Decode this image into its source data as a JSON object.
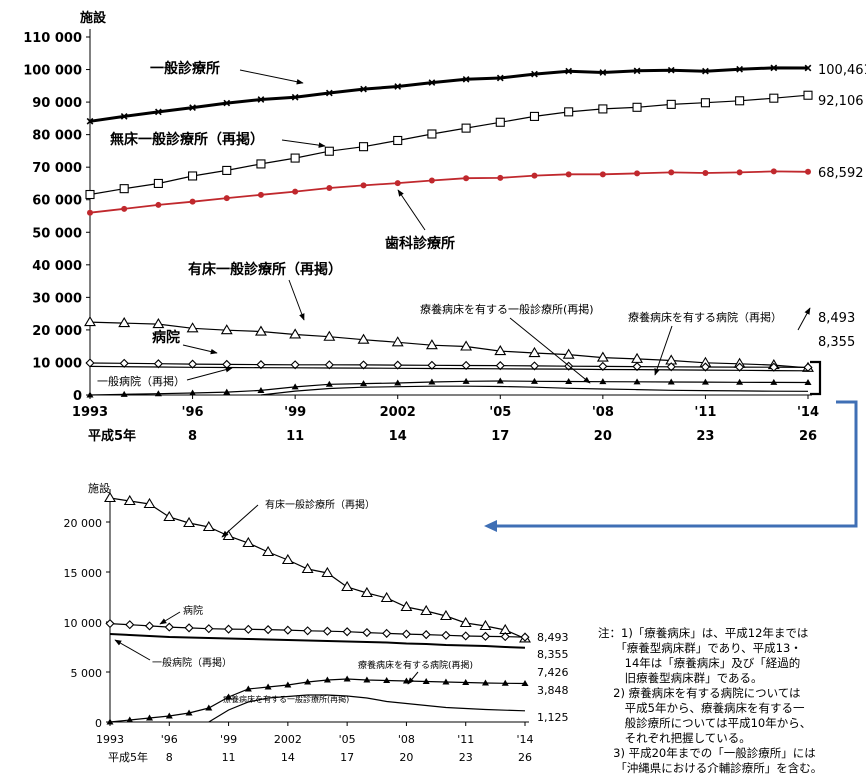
{
  "chart_data": [
    {
      "type": "line",
      "ylabel": "施設",
      "ylim": [
        0,
        110000
      ],
      "yticks": [
        "110 000",
        "100 000",
        "90 000",
        "80 000",
        "70 000",
        "60 000",
        "50 000",
        "40 000",
        "30 000",
        "20 000",
        "10 000",
        "0"
      ],
      "x": [
        1993,
        1994,
        1995,
        1996,
        1997,
        1998,
        1999,
        2000,
        2001,
        2002,
        2003,
        2004,
        2005,
        2006,
        2007,
        2008,
        2009,
        2010,
        2011,
        2012,
        2013,
        2014
      ],
      "xtick_labels": [
        "1993",
        "'96",
        "'99",
        "2002",
        "'05",
        "'08",
        "'11",
        "'14"
      ],
      "xtick_sub_labels": [
        "平成5年",
        "8",
        "11",
        "14",
        "17",
        "20",
        "23",
        "26"
      ],
      "series": [
        {
          "name": "一般診療所",
          "marker": "x",
          "color": "#000000",
          "end_label": "100,461",
          "values": [
            84100,
            85600,
            87000,
            88300,
            89700,
            90800,
            91500,
            92800,
            94000,
            94800,
            96000,
            97000,
            97400,
            98600,
            99500,
            99100,
            99600,
            99800,
            99500,
            100100,
            100500,
            100461
          ]
        },
        {
          "name": "無床一般診療所（再掲）",
          "marker": "square",
          "color": "#000000",
          "end_label": "92,106",
          "values": [
            61600,
            63400,
            65000,
            67300,
            69000,
            71000,
            72800,
            74900,
            76300,
            78200,
            80200,
            82000,
            83800,
            85600,
            87000,
            87900,
            88400,
            89300,
            89800,
            90400,
            91200,
            92106
          ]
        },
        {
          "name": "歯科診療所",
          "marker": "dot",
          "color": "#c0282d",
          "end_label": "68,592",
          "values": [
            56000,
            57200,
            58400,
            59400,
            60500,
            61500,
            62500,
            63600,
            64400,
            65100,
            65900,
            66600,
            66700,
            67400,
            67800,
            67800,
            68100,
            68400,
            68200,
            68400,
            68700,
            68592
          ]
        },
        {
          "name": "有床一般診療所（再掲）",
          "marker": "triangle",
          "color": "#000000",
          "values": [
            22400,
            22100,
            21800,
            20500,
            19900,
            19500,
            18600,
            17900,
            17000,
            16200,
            15300,
            14900,
            13500,
            12900,
            12400,
            11500,
            11100,
            10600,
            9900,
            9600,
            9200,
            8355
          ]
        },
        {
          "name": "病院",
          "marker": "diamond",
          "color": "#000000",
          "end_label": "8,493",
          "values": [
            9844,
            9731,
            9606,
            9490,
            9413,
            9333,
            9286,
            9266,
            9239,
            9187,
            9122,
            9077,
            9026,
            8943,
            8862,
            8794,
            8739,
            8670,
            8605,
            8565,
            8540,
            8493
          ]
        },
        {
          "name": "一般病院（再掲）",
          "marker": "none",
          "color": "#000000",
          "values": [
            8800,
            8700,
            8600,
            8500,
            8450,
            8400,
            8350,
            8300,
            8250,
            8200,
            8150,
            8100,
            8050,
            8000,
            7950,
            7850,
            7800,
            7700,
            7650,
            7600,
            7500,
            7426
          ]
        },
        {
          "name": "療養病床を有する病院（再掲）",
          "marker": "triangle-filled",
          "color": "#000000",
          "values": [
            0,
            200,
            400,
            600,
            900,
            1400,
            2500,
            3300,
            3500,
            3700,
            4000,
            4200,
            4300,
            4200,
            4150,
            4100,
            4050,
            4000,
            3950,
            3900,
            3870,
            3848
          ]
        },
        {
          "name": "療養病床を有する一般診療所(再掲)",
          "marker": "none",
          "color": "#000000",
          "values": [
            null,
            null,
            null,
            null,
            null,
            0,
            1200,
            2000,
            2400,
            2550,
            2700,
            2700,
            2600,
            2400,
            2050,
            1850,
            1650,
            1450,
            1350,
            1250,
            1180,
            1125
          ]
        }
      ],
      "annotations": {
        "ippan": "一般診療所",
        "mushou": "無床一般診療所（再掲）",
        "shika": "歯科診療所",
        "yushou": "有床一般診療所（再掲）",
        "byouin": "病院",
        "ippan_byouin": "一般病院（再掲）",
        "ryouyou_shinryo": "療養病床を有する一般診療所(再掲)",
        "ryouyou_byouin": "療養病床を有する病院（再掲）"
      },
      "end_labels_extra": [
        "8,493",
        "8,355"
      ]
    },
    {
      "type": "line",
      "ylabel": "施設",
      "ylim": [
        0,
        22500
      ],
      "yticks": [
        "20 000",
        "15 000",
        "10 000",
        "5 000",
        "0"
      ],
      "xtick_labels": [
        "1993",
        "'96",
        "'99",
        "2002",
        "'05",
        "'08",
        "'11",
        "'14"
      ],
      "xtick_sub_labels": [
        "平成5年",
        "8",
        "11",
        "14",
        "17",
        "20",
        "23",
        "26"
      ],
      "annotations": {
        "yushou": "有床一般診療所（再掲）",
        "byouin": "病院",
        "ippan_byouin": "一般病院（再掲）",
        "ryouyou_byouin": "療養病床を有する病院(再掲)",
        "ryouyou_shinryo": "療養病床を有する一般診療所(再掲)"
      },
      "end_labels": [
        "8,493",
        "8,355",
        "7,426",
        "3,848",
        "1,125"
      ]
    }
  ],
  "notes": [
    "注：1)「療養病床」は、平成12年までは",
    "　　「療養型病床群」であり、平成13・",
    "　　 14年は「療養病床」及び「経過的",
    "　　 旧療養型病床群」である。",
    "　 2) 療養病床を有する病院については",
    "　　 平成5年から、療養病床を有する一",
    "　　 般診療所については平成10年から、",
    "　　 それぞれ把握している。",
    "　 3) 平成20年までの「一般診療所」には",
    "　　「沖縄県における介輔診療所」を含む。"
  ]
}
